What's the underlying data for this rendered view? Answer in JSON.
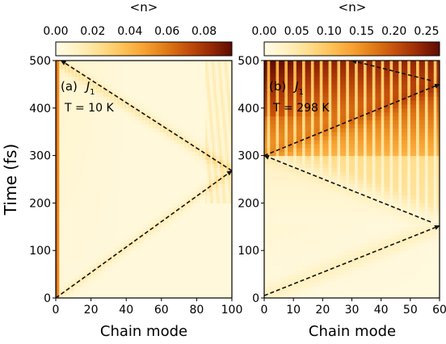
{
  "figure": {
    "y_axis_label": "Time (fs)",
    "colormap": [
      "#fffbe6",
      "#fff1c2",
      "#ffde8e",
      "#ffc35a",
      "#f7a232",
      "#e07a16",
      "#c44f0b",
      "#9a2a05",
      "#5e0b02"
    ]
  },
  "chart_data": [
    {
      "type": "heatmap",
      "panel_label": "(a)",
      "coupling_label": "J",
      "coupling_subscript": "1",
      "temperature_label": "T = 10 K",
      "xlabel": "Chain mode",
      "xlim": [
        0,
        100
      ],
      "xticks": [
        0,
        20,
        40,
        60,
        80,
        100
      ],
      "ylim": [
        0,
        500
      ],
      "yticks": [
        0,
        100,
        200,
        300,
        400,
        500
      ],
      "colorbar": {
        "label": "<n>",
        "range": [
          0,
          0.095
        ],
        "ticks": [
          0.0,
          0.02,
          0.04,
          0.06,
          0.08
        ],
        "tick_labels": [
          "0.00",
          "0.02",
          "0.04",
          "0.06",
          "0.08"
        ]
      },
      "wavefront_arrows": [
        {
          "from": [
            0,
            0
          ],
          "to": [
            100,
            268
          ]
        },
        {
          "from": [
            100,
            268
          ],
          "to": [
            3,
            500
          ]
        }
      ],
      "features": {
        "hot_edge_mode_max": 2,
        "hot_edge_value": 0.07
      }
    },
    {
      "type": "heatmap",
      "panel_label": "(b)",
      "coupling_label": "J",
      "coupling_subscript": "1",
      "temperature_label": "T = 298 K",
      "xlabel": "Chain mode",
      "xlim": [
        0,
        60
      ],
      "xticks": [
        0,
        10,
        20,
        30,
        40,
        50,
        60
      ],
      "ylim": [
        0,
        500
      ],
      "yticks": [
        0,
        100,
        200,
        300,
        400,
        500
      ],
      "colorbar": {
        "label": "<n>",
        "range": [
          0,
          0.27
        ],
        "ticks": [
          0.0,
          0.05,
          0.1,
          0.15,
          0.2,
          0.25
        ],
        "tick_labels": [
          "0.00",
          "0.05",
          "0.10",
          "0.15",
          "0.20",
          "0.25"
        ]
      },
      "wavefront_arrows": [
        {
          "from": [
            0,
            5
          ],
          "to": [
            60,
            152
          ]
        },
        {
          "from": [
            57,
            160
          ],
          "to": [
            0,
            300
          ]
        },
        {
          "from": [
            0,
            300
          ],
          "to": [
            60,
            450
          ]
        },
        {
          "from": [
            57,
            458
          ],
          "to": [
            30,
            500
          ]
        }
      ],
      "features": {
        "stripe_period_modes": 3
      }
    }
  ]
}
